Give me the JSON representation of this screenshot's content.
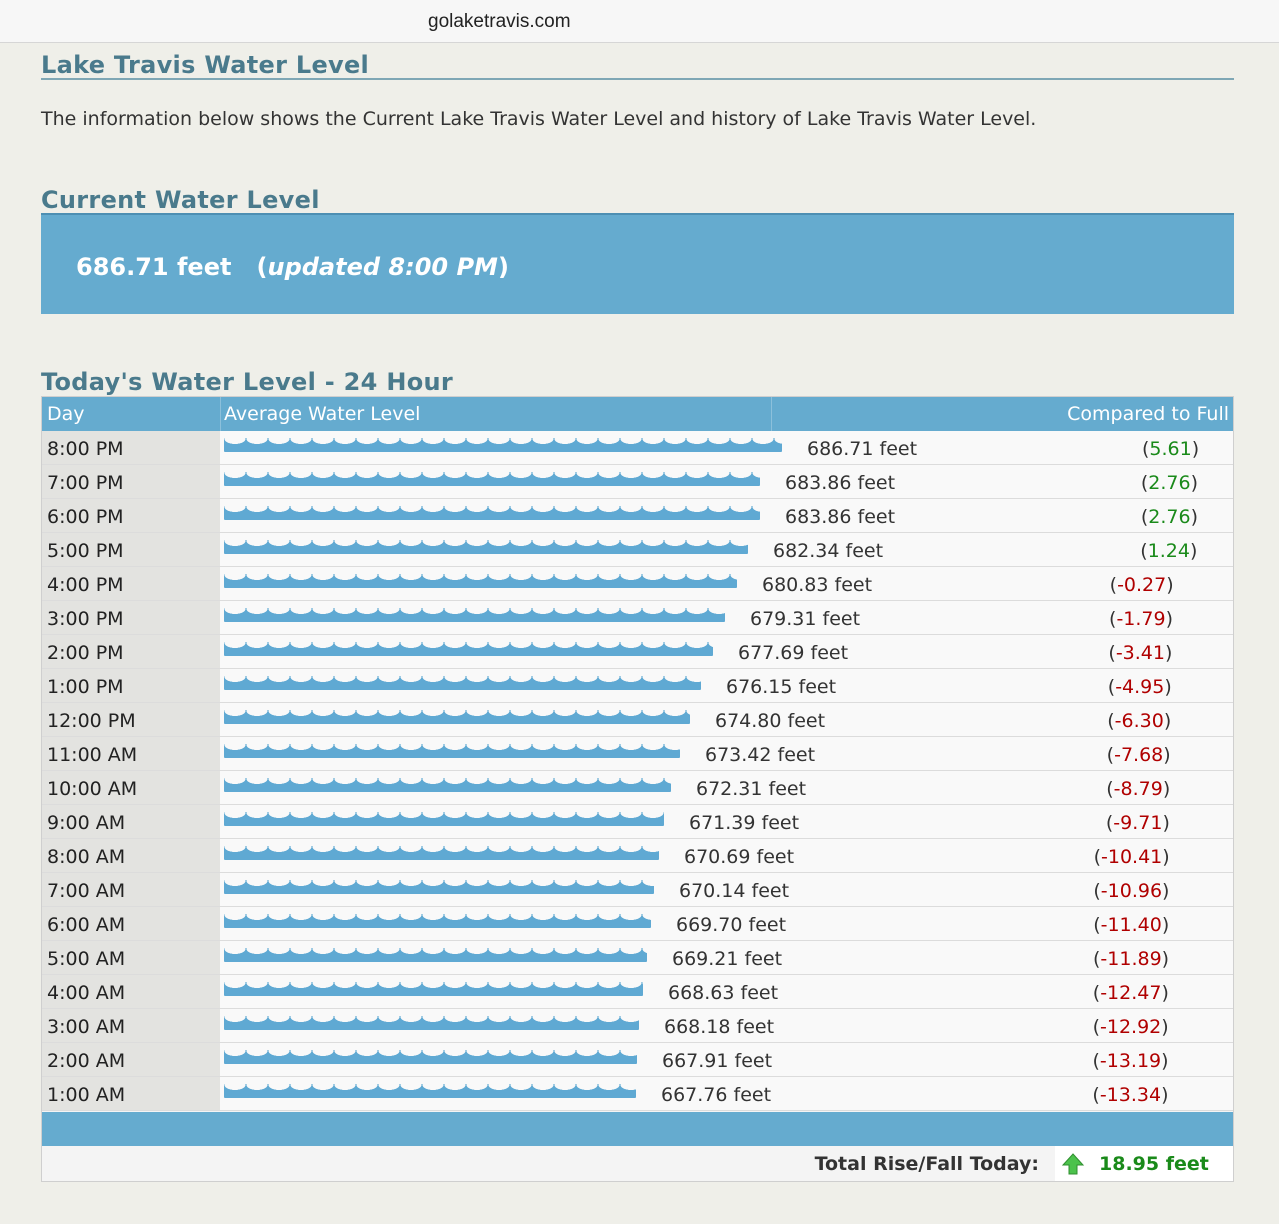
{
  "browser": {
    "url": "golaketravis.com"
  },
  "page": {
    "title": "Lake Travis Water Level",
    "intro": "The information below shows the Current Lake Travis Water Level and history of Lake Travis Water Level."
  },
  "current": {
    "heading": "Current Water Level",
    "value": "686.71 feet",
    "updated": "updated 8:00 PM"
  },
  "today": {
    "heading": "Today's Water Level - 24 Hour",
    "columns": {
      "day": "Day",
      "avg": "Average Water Level",
      "cmp": "Compared to Full"
    },
    "rows": [
      {
        "time": "8:00 PM",
        "level": "686.71 feet",
        "cmp": "5.61"
      },
      {
        "time": "7:00 PM",
        "level": "683.86 feet",
        "cmp": "2.76"
      },
      {
        "time": "6:00 PM",
        "level": "683.86 feet",
        "cmp": "2.76"
      },
      {
        "time": "5:00 PM",
        "level": "682.34 feet",
        "cmp": "1.24"
      },
      {
        "time": "4:00 PM",
        "level": "680.83 feet",
        "cmp": "-0.27"
      },
      {
        "time": "3:00 PM",
        "level": "679.31 feet",
        "cmp": "-1.79"
      },
      {
        "time": "2:00 PM",
        "level": "677.69 feet",
        "cmp": "-3.41"
      },
      {
        "time": "1:00 PM",
        "level": "676.15 feet",
        "cmp": "-4.95"
      },
      {
        "time": "12:00 PM",
        "level": "674.80 feet",
        "cmp": "-6.30"
      },
      {
        "time": "11:00 AM",
        "level": "673.42 feet",
        "cmp": "-7.68"
      },
      {
        "time": "10:00 AM",
        "level": "672.31 feet",
        "cmp": "-8.79"
      },
      {
        "time": "9:00 AM",
        "level": "671.39 feet",
        "cmp": "-9.71"
      },
      {
        "time": "8:00 AM",
        "level": "670.69 feet",
        "cmp": "-10.41"
      },
      {
        "time": "7:00 AM",
        "level": "670.14 feet",
        "cmp": "-10.96"
      },
      {
        "time": "6:00 AM",
        "level": "669.70 feet",
        "cmp": "-11.40"
      },
      {
        "time": "5:00 AM",
        "level": "669.21 feet",
        "cmp": "-11.89"
      },
      {
        "time": "4:00 AM",
        "level": "668.63 feet",
        "cmp": "-12.47"
      },
      {
        "time": "3:00 AM",
        "level": "668.18 feet",
        "cmp": "-12.92"
      },
      {
        "time": "2:00 AM",
        "level": "667.91 feet",
        "cmp": "-13.19"
      },
      {
        "time": "1:00 AM",
        "level": "667.76 feet",
        "cmp": "-13.34"
      }
    ],
    "total_label": "Total Rise/Fall Today:",
    "total_value": "18.95 feet",
    "total_direction": "up"
  },
  "colors": {
    "heading": "#4a7a8c",
    "accent": "#65abcf",
    "positive": "#1a8a1a",
    "negative": "#b00000"
  }
}
